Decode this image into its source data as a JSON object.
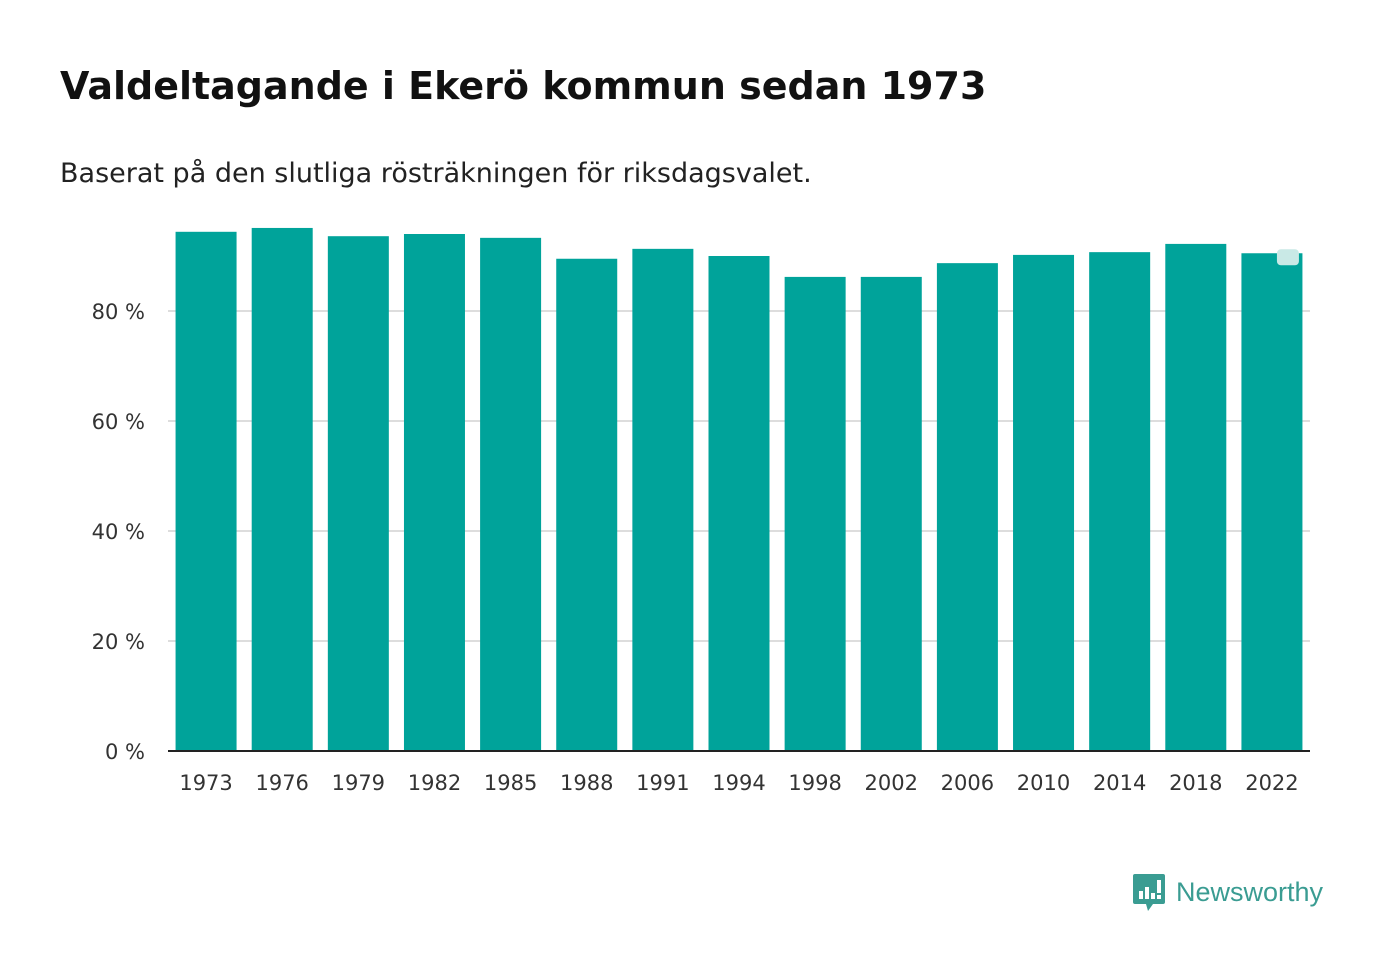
{
  "chart_data": {
    "type": "bar",
    "title": "Valdeltagande i Ekerö kommun sedan 1973",
    "subtitle": "Baserat på den slutliga rösträkningen för riksdagsvalet.",
    "xlabel": "",
    "ylabel": "",
    "categories": [
      "1973",
      "1976",
      "1979",
      "1982",
      "1985",
      "1988",
      "1991",
      "1994",
      "1998",
      "2002",
      "2006",
      "2010",
      "2014",
      "2018",
      "2022"
    ],
    "values": [
      94.4,
      95.1,
      93.6,
      94.0,
      93.3,
      89.5,
      91.3,
      90.0,
      86.2,
      86.2,
      88.7,
      90.2,
      90.7,
      92.2,
      90.5
    ],
    "ylim": [
      0,
      100
    ],
    "yticks": [
      0,
      20,
      40,
      60,
      80
    ],
    "ytick_labels": [
      "0 %",
      "20 %",
      "40 %",
      "60 %",
      "80 %"
    ],
    "grid": true,
    "bar_color": "#00a39a",
    "highlight_marker_color": "#c9e9e6"
  },
  "branding": {
    "logo_text": "Newsworthy",
    "logo_color": "#3a9c92"
  }
}
